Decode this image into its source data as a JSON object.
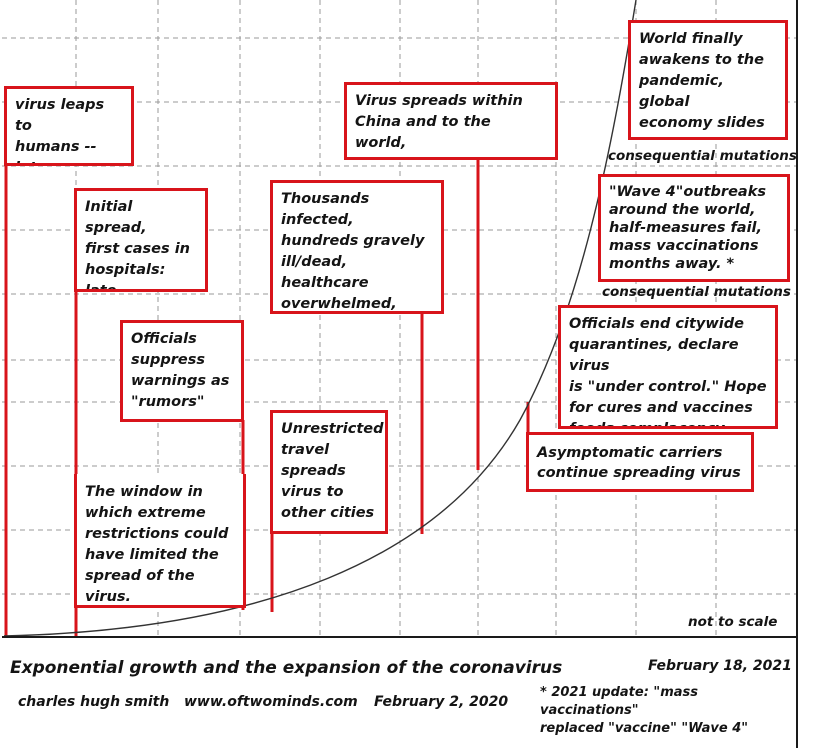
{
  "callouts": {
    "humans": "virus leaps to\nhumans -- late\nOct early Nov",
    "initial": "Initial spread,\nfirst cases in\nhospitals: late\nDec.- early Jan.",
    "officials": "Officials\nsuppress\nwarnings as\n\"rumors\"",
    "window": "The window in\nwhich extreme\nrestrictions could\nhave limited the\nspread of the virus.",
    "unrestricted": "Unrestricted\ntravel\nspreads\nvirus to\nother cities",
    "thousands": "Thousands infected,\nhundreds gravely\nill/dead, healthcare\noverwhelmed,\nofficials finally act.",
    "spreads": "Virus spreads within\nChina and to the world,\ntravel restricted too late.",
    "asymptomatic": "Asymptomatic carriers\ncontinue spreading virus",
    "citywide": "Officials end citywide\nquarantines, declare virus\nis \"under control.\" Hope\nfor cures and vaccines\nfeeds complacency.",
    "wave4": "\"Wave 4\"outbreaks\naround the world,\nhalf-measures fail,\nmass vaccinations\nmonths away. *",
    "world": "World finally\nawakens to the\npandemic, global\neconomy slides\ninto depression."
  },
  "notes": {
    "mutations_top": "consequential mutations",
    "mutations_bottom": "consequential mutations",
    "scale": "not to scale"
  },
  "footer": {
    "title": "Exponential growth and the expansion of the coronavirus",
    "date": "February 18, 2021",
    "author": "charles hugh smith",
    "website": "www.oftwominds.com",
    "orig_date": "February 2, 2020",
    "update": "* 2021 update: \"mass vaccinations\"\n   replaced \"vaccine\"  \"Wave 4\""
  },
  "colors": {
    "callout_border": "#d8141b",
    "curve": "#333333",
    "grid": "#9a9a9a"
  }
}
